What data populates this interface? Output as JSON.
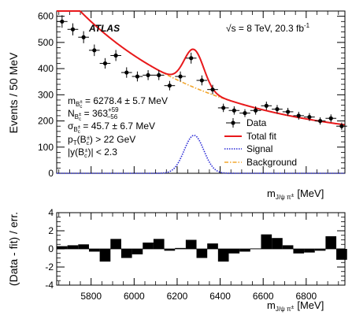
{
  "chart_data": [
    {
      "type": "scatter",
      "ylabel": "Events / 50 MeV",
      "xlabel_main": "m",
      "xlabel_sub": "J/ψ π",
      "xlabel_sup": "±",
      "xlabel_unit": "[MeV]",
      "xlim": [
        5640,
        6980
      ],
      "ylim": [
        0,
        620
      ],
      "xticks": [
        5800,
        6000,
        6200,
        6400,
        6600,
        6800
      ],
      "yticks": [
        0,
        100,
        200,
        300,
        400,
        500,
        600
      ],
      "atlas_label": "ATLAS",
      "energy_label": "√s = 8 TeV, 20.3 fb",
      "energy_sup": "-1",
      "fit_params": [
        {
          "main": "m",
          "sub": "B",
          "subsub": "c",
          "subsup": "±",
          "rest": " = 6278.4 ± 5.7 MeV"
        },
        {
          "main": "N",
          "sub": "B",
          "subsub": "c",
          "subsup": "±",
          "rest": " = 363",
          "restsup": "+59",
          "restsub": "−56"
        },
        {
          "main": "σ",
          "sub": "B",
          "subsub": "c",
          "subsup": "±",
          "rest": " = 45.7 ± 6.7 MeV"
        },
        {
          "main": "p",
          "sub": "T",
          "paren": "(B",
          "parensub": "c",
          "parensup": "±",
          "rest": ") > 22 GeV"
        },
        {
          "main": "|y(B",
          "parensub": "c",
          "parensup": "±",
          "rest": ")| < 2.3"
        }
      ],
      "legend": [
        {
          "label": "Data",
          "style": "points"
        },
        {
          "label": "Total fit",
          "style": "solid",
          "color": "#e8191c"
        },
        {
          "label": "Signal",
          "style": "dotted",
          "color": "#2a2ad6"
        },
        {
          "label": "Background",
          "style": "dashdot",
          "color": "#f2a52b"
        }
      ],
      "series": [
        {
          "name": "Data",
          "x": [
            5665,
            5715,
            5765,
            5815,
            5865,
            5915,
            5965,
            6015,
            6065,
            6115,
            6165,
            6215,
            6265,
            6315,
            6365,
            6415,
            6465,
            6515,
            6565,
            6615,
            6665,
            6715,
            6765,
            6815,
            6865,
            6915,
            6965
          ],
          "y": [
            580,
            550,
            520,
            470,
            420,
            450,
            385,
            370,
            375,
            375,
            335,
            370,
            440,
            355,
            320,
            250,
            240,
            230,
            240,
            258,
            245,
            235,
            220,
            215,
            200,
            210,
            180
          ],
          "yerr": [
            24,
            23,
            23,
            22,
            20,
            21,
            20,
            19,
            19,
            19,
            18,
            19,
            21,
            19,
            18,
            16,
            16,
            15,
            16,
            16,
            16,
            15,
            15,
            15,
            14,
            15,
            14
          ]
        },
        {
          "name": "Total fit",
          "color": "#e8191c"
        },
        {
          "name": "Signal",
          "color": "#2a2ad6"
        },
        {
          "name": "Background",
          "color": "#f2a52b"
        }
      ],
      "model": {
        "bkg_a": 565,
        "bkg_b": 0.001655,
        "bkg_c": 120,
        "bkg_x0": 5675,
        "sig_mean": 6278.4,
        "sig_sigma": 45.7,
        "sig_peak": 145
      }
    },
    {
      "type": "bar",
      "ylabel": "(Data - fit) / err.",
      "xlabel_main": "m",
      "xlabel_sub": "J/ψ π",
      "xlabel_sup": "±",
      "xlabel_unit": "[MeV]",
      "xlim": [
        5640,
        6980
      ],
      "ylim": [
        -4,
        4
      ],
      "xticks": [
        5800,
        6000,
        6200,
        6400,
        6600,
        6800
      ],
      "yticks": [
        -4,
        -2,
        0,
        2,
        4
      ],
      "x": [
        5665,
        5715,
        5765,
        5815,
        5865,
        5915,
        5965,
        6015,
        6065,
        6115,
        6165,
        6215,
        6265,
        6315,
        6365,
        6415,
        6465,
        6515,
        6565,
        6615,
        6665,
        6715,
        6765,
        6815,
        6865,
        6915,
        6965
      ],
      "values": [
        0.3,
        0.4,
        0.5,
        -0.3,
        -1.4,
        1.1,
        -1.0,
        -0.6,
        0.7,
        1.1,
        -0.2,
        0.1,
        1.0,
        -1.0,
        0.6,
        -1.4,
        -0.5,
        -0.3,
        0.05,
        1.6,
        1.2,
        0.4,
        -0.5,
        -0.4,
        -0.2,
        1.4,
        -1.2
      ]
    }
  ]
}
